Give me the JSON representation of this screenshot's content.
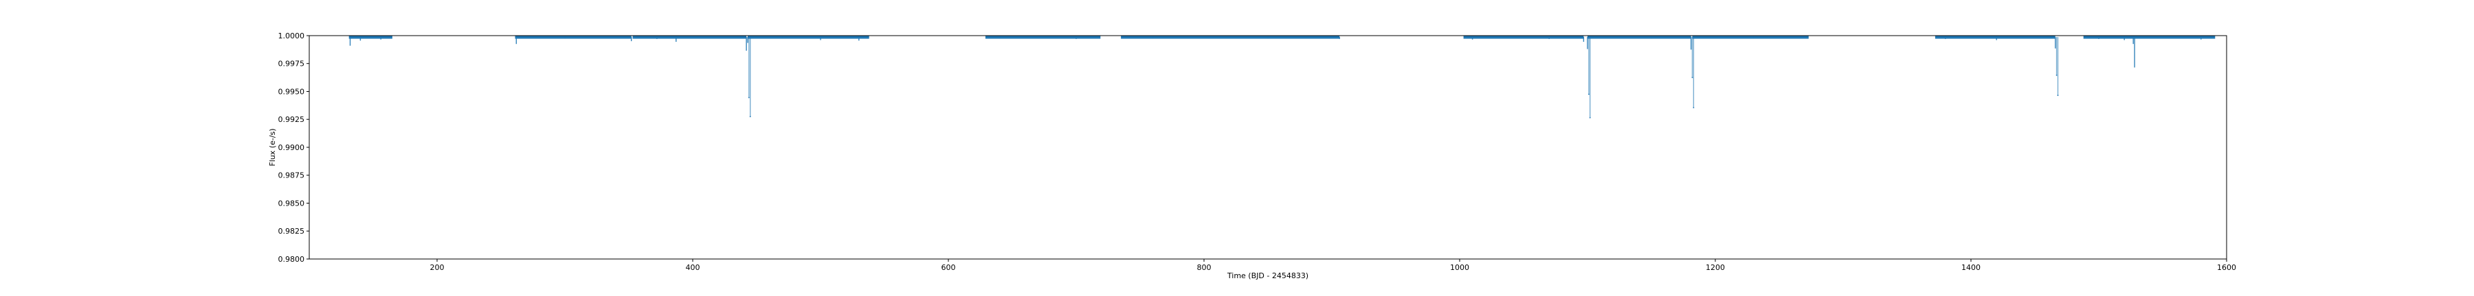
{
  "chart_data": {
    "type": "scatter",
    "title": "",
    "xlabel": "Time (BJD - 2454833)",
    "ylabel": "Flux (e-/s)",
    "xlim": [
      100,
      1600
    ],
    "ylim": [
      0.98,
      1.0
    ],
    "xticks": [
      200,
      400,
      600,
      800,
      1000,
      1200,
      1400,
      1600
    ],
    "xtick_labels": [
      "200",
      "400",
      "600",
      "800",
      "1000",
      "1200",
      "1400",
      "1600"
    ],
    "yticks": [
      0.98,
      0.9825,
      0.985,
      0.9875,
      0.99,
      0.9925,
      0.995,
      0.9975,
      1.0
    ],
    "ytick_labels": [
      "0.9800",
      "0.9825",
      "0.9850",
      "0.9875",
      "0.9900",
      "0.9925",
      "0.9950",
      "0.9975",
      "1.0000"
    ],
    "grid": false,
    "color": "#1f77b4",
    "observing_segments": [
      [
        131,
        165
      ],
      [
        261,
        352
      ],
      [
        353,
        442
      ],
      [
        443,
        538
      ],
      [
        629,
        719
      ],
      [
        735,
        800
      ],
      [
        800,
        906
      ],
      [
        1003,
        1097
      ],
      [
        1100,
        1181
      ],
      [
        1182,
        1273
      ],
      [
        1372,
        1466
      ],
      [
        1488,
        1591
      ]
    ],
    "series": [
      {
        "values": [
          [
            132,
            0.9991
          ],
          [
            140,
            0.99955
          ],
          [
            156,
            0.99965
          ],
          [
            262,
            0.99925
          ],
          [
            300,
            0.99975
          ],
          [
            352,
            0.9995
          ],
          [
            372,
            0.9997
          ],
          [
            387,
            0.99945
          ],
          [
            442,
            0.99865
          ],
          [
            443,
            0.99935
          ],
          [
            444,
            0.99445
          ],
          [
            445,
            0.99275
          ],
          [
            470,
            0.99975
          ],
          [
            500,
            0.9996
          ],
          [
            530,
            0.99955
          ],
          [
            640,
            0.99975
          ],
          [
            700,
            0.9997
          ],
          [
            760,
            0.99975
          ],
          [
            850,
            0.99975
          ],
          [
            906,
            0.9997
          ],
          [
            1010,
            0.99965
          ],
          [
            1070,
            0.9997
          ],
          [
            1097,
            0.99945
          ],
          [
            1100,
            0.9988
          ],
          [
            1101,
            0.99475
          ],
          [
            1102,
            0.99265
          ],
          [
            1150,
            0.99975
          ],
          [
            1181,
            0.99875
          ],
          [
            1182,
            0.99625
          ],
          [
            1183,
            0.99355
          ],
          [
            1230,
            0.99975
          ],
          [
            1380,
            0.9997
          ],
          [
            1420,
            0.9996
          ],
          [
            1466,
            0.99885
          ],
          [
            1467,
            0.99645
          ],
          [
            1468,
            0.99465
          ],
          [
            1500,
            0.9997
          ],
          [
            1520,
            0.9996
          ],
          [
            1527,
            0.99925
          ],
          [
            1528,
            0.99715
          ],
          [
            1580,
            0.99965
          ]
        ]
      }
    ]
  }
}
